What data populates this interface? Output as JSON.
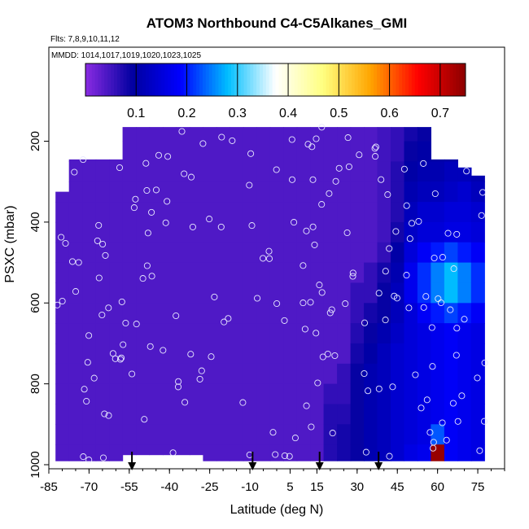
{
  "chart_data": {
    "type": "heatmap",
    "title": "ATOM3 Northbound C4-C5Alkanes_GMI",
    "flights_label": "Flts: 7,8,9,10,11,12",
    "mmdd_label": "MMDD: 1014,1017,1019,1020,1023,1025",
    "xlabel": "Latitude (deg N)",
    "ylabel": "PSXC (mbar)",
    "xlim": [
      -85,
      85
    ],
    "ylim": [
      1000,
      50
    ],
    "y_reversed": true,
    "x_ticks": [
      -85,
      -70,
      -55,
      -40,
      -25,
      -10,
      5,
      15,
      30,
      45,
      60,
      75
    ],
    "y_ticks": [
      200,
      400,
      600,
      800,
      1000
    ],
    "colorbar": {
      "min": 0.0,
      "max": 0.75,
      "ticks": [
        0.1,
        0.2,
        0.3,
        0.4,
        0.5,
        0.6,
        0.7
      ],
      "colors": [
        "#8a2be2",
        "#0000a0",
        "#0000ff",
        "#00bfff",
        "#ffffff",
        "#ffff80",
        "#ffa500",
        "#ff0000",
        "#8b0000"
      ]
    },
    "arrows_x": [
      -54,
      -9,
      16,
      38
    ],
    "lat_edges": [
      -82.5,
      -77.5,
      -72.5,
      -67.5,
      -62.5,
      -57.5,
      -52.5,
      -47.5,
      -42.5,
      -37.5,
      -32.5,
      -27.5,
      -22.5,
      -17.5,
      -12.5,
      -7.5,
      -2.5,
      2.5,
      7.5,
      12.5,
      17.5,
      22.5,
      27.5,
      32.5,
      37.5,
      42.5,
      47.5,
      52.5,
      57.5,
      62.5,
      67.5,
      72.5,
      77.5
    ],
    "column_extents": [
      [
        325,
        990
      ],
      [
        245,
        990
      ],
      [
        245,
        990
      ],
      [
        245,
        990
      ],
      [
        245,
        990
      ],
      [
        165,
        975
      ],
      [
        165,
        975
      ],
      [
        165,
        975
      ],
      [
        165,
        975
      ],
      [
        165,
        975
      ],
      [
        165,
        975
      ],
      [
        165,
        990
      ],
      [
        165,
        990
      ],
      [
        165,
        990
      ],
      [
        165,
        990
      ],
      [
        165,
        990
      ],
      [
        165,
        990
      ],
      [
        165,
        990
      ],
      [
        165,
        990
      ],
      [
        165,
        990
      ],
      [
        165,
        990
      ],
      [
        165,
        990
      ],
      [
        165,
        990
      ],
      [
        165,
        990
      ],
      [
        165,
        990
      ],
      [
        165,
        990
      ],
      [
        165,
        990
      ],
      [
        165,
        990
      ],
      [
        245,
        990
      ],
      [
        245,
        990
      ],
      [
        265,
        990
      ],
      [
        285,
        990
      ]
    ],
    "levels": [
      175,
      225,
      275,
      325,
      375,
      425,
      475,
      525,
      575,
      625,
      675,
      725,
      775,
      825,
      875,
      925,
      975
    ],
    "field": [
      [
        0.04,
        0.04,
        0.04,
        0.04,
        0.04,
        0.04,
        0.04,
        0.04,
        0.04,
        0.04,
        0.04,
        0.04,
        0.04,
        0.04,
        0.04,
        0.04,
        0.04
      ],
      [
        0.04,
        0.04,
        0.04,
        0.04,
        0.04,
        0.04,
        0.04,
        0.04,
        0.04,
        0.04,
        0.04,
        0.04,
        0.04,
        0.04,
        0.04,
        0.04,
        0.04
      ],
      [
        0.04,
        0.04,
        0.04,
        0.04,
        0.04,
        0.04,
        0.04,
        0.04,
        0.04,
        0.04,
        0.04,
        0.04,
        0.04,
        0.04,
        0.04,
        0.04,
        0.04
      ],
      [
        0.04,
        0.04,
        0.04,
        0.04,
        0.04,
        0.04,
        0.04,
        0.04,
        0.04,
        0.04,
        0.04,
        0.04,
        0.04,
        0.04,
        0.04,
        0.04,
        0.04
      ],
      [
        0.04,
        0.04,
        0.04,
        0.04,
        0.04,
        0.04,
        0.04,
        0.04,
        0.04,
        0.04,
        0.04,
        0.04,
        0.04,
        0.04,
        0.04,
        0.04,
        0.04
      ],
      [
        0.04,
        0.04,
        0.04,
        0.04,
        0.04,
        0.04,
        0.04,
        0.04,
        0.04,
        0.04,
        0.04,
        0.04,
        0.04,
        0.04,
        0.04,
        0.04,
        0.04
      ],
      [
        0.04,
        0.04,
        0.04,
        0.04,
        0.04,
        0.04,
        0.04,
        0.04,
        0.04,
        0.04,
        0.04,
        0.04,
        0.04,
        0.04,
        0.04,
        0.04,
        0.04
      ],
      [
        0.04,
        0.04,
        0.04,
        0.04,
        0.04,
        0.04,
        0.04,
        0.04,
        0.04,
        0.04,
        0.04,
        0.04,
        0.04,
        0.04,
        0.04,
        0.04,
        0.04
      ],
      [
        0.04,
        0.04,
        0.04,
        0.04,
        0.04,
        0.04,
        0.04,
        0.04,
        0.04,
        0.04,
        0.04,
        0.04,
        0.04,
        0.04,
        0.04,
        0.04,
        0.04
      ],
      [
        0.04,
        0.04,
        0.04,
        0.04,
        0.04,
        0.04,
        0.04,
        0.04,
        0.04,
        0.04,
        0.04,
        0.04,
        0.04,
        0.04,
        0.04,
        0.04,
        0.04
      ],
      [
        0.04,
        0.04,
        0.04,
        0.04,
        0.04,
        0.04,
        0.04,
        0.04,
        0.04,
        0.04,
        0.04,
        0.04,
        0.04,
        0.04,
        0.04,
        0.04,
        0.04
      ],
      [
        0.04,
        0.04,
        0.04,
        0.04,
        0.04,
        0.04,
        0.04,
        0.04,
        0.04,
        0.04,
        0.04,
        0.04,
        0.04,
        0.04,
        0.04,
        0.04,
        0.04
      ],
      [
        0.04,
        0.04,
        0.04,
        0.04,
        0.04,
        0.04,
        0.04,
        0.04,
        0.04,
        0.04,
        0.04,
        0.04,
        0.04,
        0.04,
        0.04,
        0.04,
        0.04
      ],
      [
        0.04,
        0.04,
        0.04,
        0.04,
        0.04,
        0.04,
        0.04,
        0.04,
        0.04,
        0.04,
        0.04,
        0.04,
        0.04,
        0.04,
        0.04,
        0.04,
        0.04
      ],
      [
        0.04,
        0.04,
        0.04,
        0.04,
        0.04,
        0.04,
        0.04,
        0.04,
        0.04,
        0.04,
        0.04,
        0.04,
        0.04,
        0.04,
        0.04,
        0.04,
        0.04
      ],
      [
        0.04,
        0.04,
        0.04,
        0.04,
        0.04,
        0.04,
        0.04,
        0.04,
        0.04,
        0.04,
        0.04,
        0.04,
        0.04,
        0.04,
        0.04,
        0.04,
        0.04
      ],
      [
        0.04,
        0.04,
        0.04,
        0.04,
        0.04,
        0.04,
        0.04,
        0.04,
        0.04,
        0.04,
        0.04,
        0.04,
        0.04,
        0.04,
        0.04,
        0.04,
        0.04
      ],
      [
        0.04,
        0.04,
        0.04,
        0.04,
        0.04,
        0.04,
        0.04,
        0.04,
        0.04,
        0.04,
        0.04,
        0.04,
        0.04,
        0.04,
        0.04,
        0.04,
        0.04
      ],
      [
        0.04,
        0.04,
        0.04,
        0.04,
        0.04,
        0.04,
        0.04,
        0.04,
        0.04,
        0.04,
        0.04,
        0.04,
        0.04,
        0.04,
        0.04,
        0.04,
        0.04
      ],
      [
        0.04,
        0.04,
        0.04,
        0.04,
        0.04,
        0.04,
        0.04,
        0.04,
        0.04,
        0.04,
        0.04,
        0.04,
        0.04,
        0.04,
        0.04,
        0.04,
        0.04
      ],
      [
        0.04,
        0.04,
        0.04,
        0.04,
        0.04,
        0.04,
        0.04,
        0.04,
        0.04,
        0.04,
        0.04,
        0.04,
        0.04,
        0.06,
        0.07,
        0.07,
        0.07
      ],
      [
        0.04,
        0.04,
        0.04,
        0.04,
        0.04,
        0.04,
        0.04,
        0.04,
        0.04,
        0.04,
        0.04,
        0.04,
        0.06,
        0.06,
        0.07,
        0.08,
        0.08
      ],
      [
        0.04,
        0.04,
        0.04,
        0.04,
        0.04,
        0.04,
        0.04,
        0.04,
        0.06,
        0.06,
        0.07,
        0.08,
        0.09,
        0.09,
        0.09,
        0.09,
        0.09
      ],
      [
        0.04,
        0.04,
        0.04,
        0.04,
        0.04,
        0.04,
        0.04,
        0.06,
        0.06,
        0.08,
        0.09,
        0.1,
        0.11,
        0.11,
        0.11,
        0.11,
        0.11
      ],
      [
        0.05,
        0.05,
        0.05,
        0.05,
        0.05,
        0.05,
        0.06,
        0.08,
        0.09,
        0.09,
        0.11,
        0.12,
        0.12,
        0.12,
        0.12,
        0.12,
        0.12
      ],
      [
        0.06,
        0.06,
        0.07,
        0.07,
        0.07,
        0.08,
        0.1,
        0.11,
        0.12,
        0.12,
        0.13,
        0.14,
        0.14,
        0.14,
        0.14,
        0.14,
        0.14
      ],
      [
        0.08,
        0.09,
        0.1,
        0.11,
        0.12,
        0.13,
        0.15,
        0.17,
        0.17,
        0.15,
        0.15,
        0.15,
        0.15,
        0.15,
        0.15,
        0.15,
        0.16
      ],
      [
        0.09,
        0.1,
        0.11,
        0.12,
        0.14,
        0.15,
        0.18,
        0.21,
        0.21,
        0.18,
        0.16,
        0.16,
        0.16,
        0.16,
        0.16,
        0.16,
        0.17
      ],
      [
        0.09,
        0.1,
        0.11,
        0.12,
        0.14,
        0.15,
        0.2,
        0.25,
        0.25,
        0.2,
        0.17,
        0.17,
        0.17,
        0.17,
        0.17,
        0.23,
        0.74
      ],
      [
        0.09,
        0.1,
        0.12,
        0.13,
        0.15,
        0.16,
        0.22,
        0.28,
        0.28,
        0.22,
        0.18,
        0.18,
        0.18,
        0.18,
        0.18,
        0.18,
        0.18
      ],
      [
        0.1,
        0.1,
        0.12,
        0.14,
        0.15,
        0.16,
        0.2,
        0.25,
        0.25,
        0.2,
        0.17,
        0.17,
        0.17,
        0.17,
        0.17,
        0.17,
        0.17
      ],
      [
        0.1,
        0.1,
        0.11,
        0.12,
        0.14,
        0.15,
        0.18,
        0.21,
        0.21,
        0.18,
        0.16,
        0.16,
        0.16,
        0.16,
        0.16,
        0.16,
        0.16
      ]
    ]
  }
}
